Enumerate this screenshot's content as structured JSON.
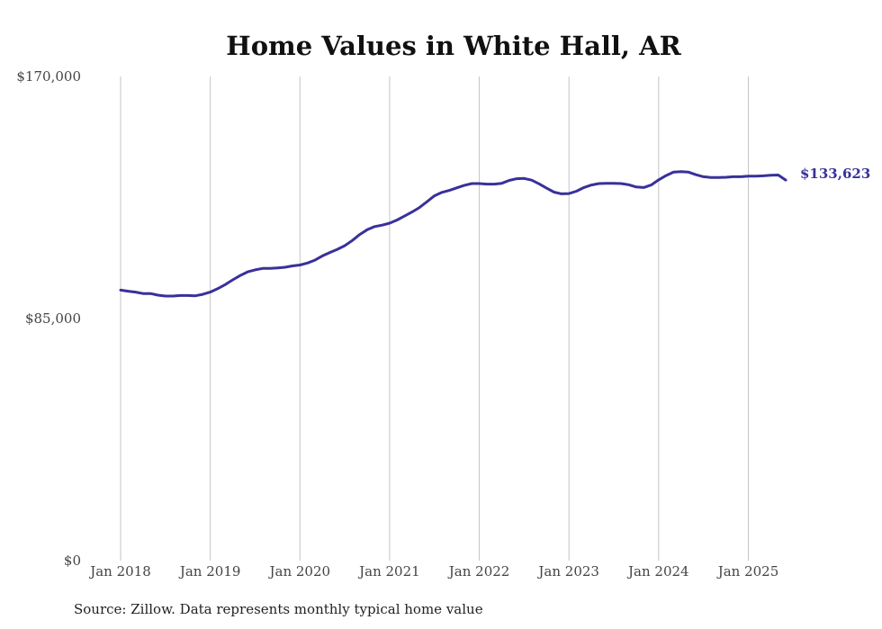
{
  "chart_data": {
    "type": "line",
    "title": "Home Values in White Hall, AR",
    "xlabel": "",
    "ylabel": "",
    "x_tick_labels": [
      "Jan 2018",
      "Jan 2019",
      "Jan 2020",
      "Jan 2021",
      "Jan 2022",
      "Jan 2023",
      "Jan 2024",
      "Jan 2025"
    ],
    "y_tick_labels": [
      "$170,000",
      "$85,000",
      "$0"
    ],
    "ylim": [
      0,
      170000
    ],
    "xlim": [
      "2018-01",
      "2025-06"
    ],
    "grid": "vertical lines at each January",
    "line_color": "#38319a",
    "end_label": "$133,623",
    "series": [
      {
        "x": [
          "2018-01",
          "2018-02",
          "2018-03",
          "2018-04",
          "2018-05",
          "2018-06",
          "2018-07",
          "2018-08",
          "2018-09",
          "2018-10",
          "2018-11",
          "2018-12",
          "2019-01",
          "2019-02",
          "2019-03",
          "2019-04",
          "2019-05",
          "2019-06",
          "2019-07",
          "2019-08",
          "2019-09",
          "2019-10",
          "2019-11",
          "2019-12",
          "2020-01",
          "2020-02",
          "2020-03",
          "2020-04",
          "2020-05",
          "2020-06",
          "2020-07",
          "2020-08",
          "2020-09",
          "2020-10",
          "2020-11",
          "2020-12",
          "2021-01",
          "2021-02",
          "2021-03",
          "2021-04",
          "2021-05",
          "2021-06",
          "2021-07",
          "2021-08",
          "2021-09",
          "2021-10",
          "2021-11",
          "2021-12",
          "2022-01",
          "2022-02",
          "2022-03",
          "2022-04",
          "2022-05",
          "2022-06",
          "2022-07",
          "2022-08",
          "2022-09",
          "2022-10",
          "2022-11",
          "2022-12",
          "2023-01",
          "2023-02",
          "2023-03",
          "2023-04",
          "2023-05",
          "2023-06",
          "2023-07",
          "2023-08",
          "2023-09",
          "2023-10",
          "2023-11",
          "2023-12",
          "2024-01",
          "2024-02",
          "2024-03",
          "2024-04",
          "2024-05",
          "2024-06",
          "2024-07",
          "2024-08",
          "2024-09",
          "2024-10",
          "2024-11",
          "2024-12",
          "2025-01",
          "2025-02",
          "2025-03",
          "2025-04",
          "2025-05",
          "2025-06"
        ],
        "values": [
          95000,
          94600,
          94300,
          93800,
          93800,
          93200,
          92900,
          92900,
          93100,
          93100,
          93000,
          93500,
          94300,
          95500,
          96900,
          98600,
          100100,
          101400,
          102100,
          102600,
          102600,
          102800,
          103000,
          103500,
          103800,
          104500,
          105500,
          107000,
          108200,
          109300,
          110600,
          112400,
          114500,
          116200,
          117300,
          117800,
          118500,
          119600,
          121000,
          122400,
          124000,
          126000,
          128100,
          129300,
          130000,
          130900,
          131800,
          132400,
          132400,
          132200,
          132200,
          132500,
          133500,
          134100,
          134200,
          133600,
          132300,
          130800,
          129400,
          128800,
          128900,
          129700,
          131000,
          131900,
          132400,
          132500,
          132500,
          132400,
          132000,
          131200,
          131000,
          131900,
          133700,
          135200,
          136400,
          136600,
          136400,
          135500,
          134800,
          134500,
          134500,
          134600,
          134800,
          134800,
          135000,
          135000,
          135100,
          135300,
          135400,
          133623
        ]
      }
    ]
  },
  "footer": {
    "source": "Source: Zillow. Data represents monthly typical home value"
  }
}
